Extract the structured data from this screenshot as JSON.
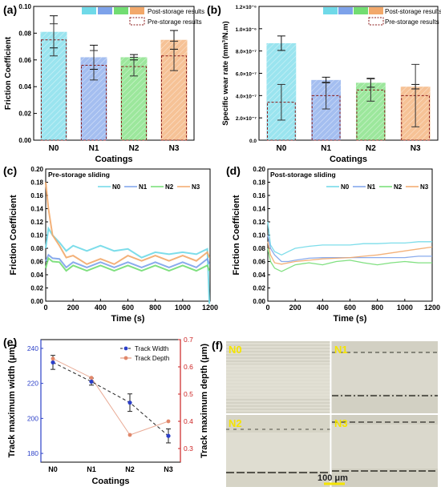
{
  "panels": {
    "a": "(a)",
    "b": "(b)",
    "c": "(c)",
    "d": "(d)",
    "e": "(e)",
    "f": "(f)"
  },
  "legend_bars": {
    "post": "Post-storage results",
    "pre": "Pre-storage results"
  },
  "colors": {
    "N0": "#6fd9e8",
    "N1": "#7da2ea",
    "N2": "#72dd72",
    "N3": "#f2a86a",
    "pre_edge": "#8b1a1a",
    "e_width": "#2b3fc8",
    "e_depth": "#e0876a",
    "e_right_axis": "#cc2222"
  },
  "chart_data": [
    {
      "id": "a",
      "type": "bar",
      "categories": [
        "N0",
        "N1",
        "N2",
        "N3"
      ],
      "xlabel": "Coatings",
      "ylabel": "Friction Coefficient",
      "ylim": [
        0,
        0.1
      ],
      "yticks": [
        "0.00",
        "0.02",
        "0.04",
        "0.06",
        "0.08",
        "0.10"
      ],
      "series": [
        {
          "name": "Post-storage results",
          "values": [
            0.081,
            0.062,
            0.062,
            0.075
          ],
          "errors": [
            0.012,
            0.009,
            0.002,
            0.007
          ]
        },
        {
          "name": "Pre-storage results",
          "values": [
            0.075,
            0.056,
            0.055,
            0.063
          ],
          "errors": [
            0.012,
            0.011,
            0.007,
            0.011
          ]
        }
      ]
    },
    {
      "id": "b",
      "type": "bar",
      "categories": [
        "N0",
        "N1",
        "N2",
        "N3"
      ],
      "xlabel": "Coatings",
      "ylabel": "Specific wear rate (mm³/N.m)",
      "ylim": [
        0,
        1.2e-06
      ],
      "yticks": [
        "0.0",
        "2.0×10⁻⁷",
        "4.0×10⁻⁷",
        "6.0×10⁻⁷",
        "8.0×10⁻⁷",
        "1.0×10⁻⁶",
        "1.2×10⁻⁶"
      ],
      "series": [
        {
          "name": "Post-storage results",
          "values": [
            8.7e-07,
            5.4e-07,
            5.15e-07,
            4.8e-07
          ],
          "errors": [
            6.5e-08,
            2.5e-08,
            4e-08,
            2e-08
          ]
        },
        {
          "name": "Pre-storage results",
          "values": [
            3.4e-07,
            4e-07,
            4.5e-07,
            4e-07
          ],
          "errors": [
            1.6e-07,
            1.2e-07,
            1e-07,
            2.8e-07
          ]
        }
      ]
    },
    {
      "id": "c",
      "type": "line",
      "annotation": "Pre-storage sliding",
      "xlabel": "Time (s)",
      "ylabel": "Friction Coefficient",
      "xlim": [
        0,
        1200
      ],
      "ylim": [
        0,
        0.2
      ],
      "xticks": [
        "0",
        "200",
        "400",
        "600",
        "800",
        "1000",
        "1200"
      ],
      "yticks": [
        "0.00",
        "0.02",
        "0.04",
        "0.06",
        "0.08",
        "0.10",
        "0.12",
        "0.14",
        "0.16",
        "0.18",
        "0.20"
      ],
      "x": [
        0,
        20,
        50,
        100,
        150,
        200,
        300,
        400,
        500,
        600,
        700,
        800,
        900,
        1000,
        1100,
        1180,
        1195
      ],
      "series": [
        {
          "name": "N0",
          "values": [
            0.08,
            0.11,
            0.1,
            0.085,
            0.08,
            0.08,
            0.08,
            0.08,
            0.08,
            0.075,
            0.07,
            0.07,
            0.075,
            0.07,
            0.075,
            0.075,
            0.0
          ]
        },
        {
          "name": "N1",
          "values": [
            0.06,
            0.07,
            0.065,
            0.06,
            0.055,
            0.055,
            0.055,
            0.055,
            0.055,
            0.055,
            0.055,
            0.055,
            0.055,
            0.055,
            0.055,
            0.06,
            0.06
          ]
        },
        {
          "name": "N2",
          "values": [
            0.05,
            0.065,
            0.06,
            0.055,
            0.05,
            0.05,
            0.05,
            0.05,
            0.05,
            0.05,
            0.05,
            0.05,
            0.05,
            0.05,
            0.05,
            0.05,
            0.05
          ]
        },
        {
          "name": "N3",
          "values": [
            0.18,
            0.14,
            0.1,
            0.08,
            0.07,
            0.065,
            0.06,
            0.06,
            0.06,
            0.065,
            0.065,
            0.065,
            0.065,
            0.065,
            0.065,
            0.07,
            0.07
          ]
        }
      ]
    },
    {
      "id": "d",
      "type": "line",
      "annotation": "Post-storage sliding",
      "xlabel": "Time (s)",
      "ylabel": "Friction Coefficient",
      "xlim": [
        0,
        1200
      ],
      "ylim": [
        0,
        0.2
      ],
      "xticks": [
        "0",
        "200",
        "400",
        "600",
        "800",
        "1000",
        "1200"
      ],
      "yticks": [
        "0.00",
        "0.02",
        "0.04",
        "0.06",
        "0.08",
        "0.10",
        "0.12",
        "0.14",
        "0.16",
        "0.18",
        "0.20"
      ],
      "x": [
        0,
        20,
        50,
        100,
        150,
        200,
        300,
        400,
        500,
        600,
        700,
        800,
        900,
        1000,
        1100,
        1200
      ],
      "series": [
        {
          "name": "N0",
          "values": [
            0.12,
            0.085,
            0.075,
            0.07,
            0.075,
            0.08,
            0.083,
            0.085,
            0.085,
            0.085,
            0.087,
            0.087,
            0.088,
            0.088,
            0.09,
            0.09
          ]
        },
        {
          "name": "N1",
          "values": [
            0.1,
            0.08,
            0.07,
            0.06,
            0.06,
            0.062,
            0.065,
            0.066,
            0.066,
            0.066,
            0.066,
            0.066,
            0.066,
            0.066,
            0.068,
            0.068
          ]
        },
        {
          "name": "N2",
          "values": [
            0.08,
            0.06,
            0.05,
            0.045,
            0.05,
            0.055,
            0.058,
            0.055,
            0.06,
            0.062,
            0.058,
            0.055,
            0.058,
            0.06,
            0.058,
            0.058
          ]
        },
        {
          "name": "N3",
          "values": [
            0.09,
            0.07,
            0.058,
            0.056,
            0.058,
            0.06,
            0.062,
            0.064,
            0.065,
            0.066,
            0.068,
            0.07,
            0.073,
            0.076,
            0.079,
            0.082
          ]
        }
      ]
    },
    {
      "id": "e",
      "type": "line",
      "categories": [
        "N0",
        "N1",
        "N2",
        "N3"
      ],
      "xlabel": "Coatings",
      "ylabel": "Track maximum width (μm)",
      "ylabel2": "Track maximum depth (μm)",
      "ylim": [
        175,
        245
      ],
      "ylim2": [
        0.25,
        0.7
      ],
      "yticks": [
        "180",
        "200",
        "220",
        "240"
      ],
      "yticks2": [
        "0.3",
        "0.4",
        "0.5",
        "0.6",
        "0.7"
      ],
      "series": [
        {
          "name": "Track Width",
          "axis": "left",
          "values": [
            232,
            221,
            209,
            190
          ],
          "errors": [
            4,
            2,
            5,
            4
          ]
        },
        {
          "name": "Track Depth",
          "axis": "right",
          "values": [
            0.63,
            0.56,
            0.35,
            0.4
          ]
        }
      ]
    }
  ],
  "micro": {
    "labels": [
      "N0",
      "N1",
      "N2",
      "N3"
    ],
    "scale_bar": "100 μm"
  }
}
